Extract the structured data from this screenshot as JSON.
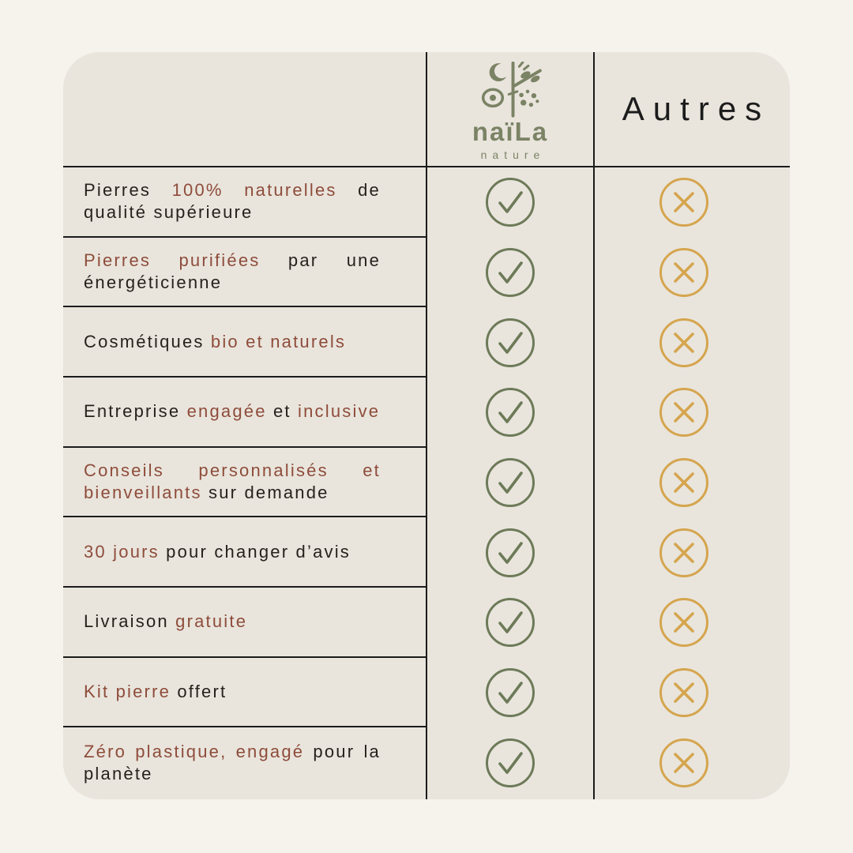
{
  "brand": {
    "name": "naïLa",
    "subtitle": "nature",
    "logo_icon": "moon-branch-eye-seeds-icon"
  },
  "header": {
    "competitor_label": "Autres"
  },
  "colors": {
    "page_bg": "#f6f2ec",
    "card_bg": "#e9e5dd",
    "line": "#1b1b1b",
    "text_dark": "#27211b",
    "text_accent": "#8e4c3a",
    "brand_green": "#7b8365",
    "check_green": "#6d7a58",
    "cross_gold": "#d5a54e"
  },
  "icons": {
    "check": "check-circle-icon",
    "cross": "x-circle-icon"
  },
  "table": {
    "rows": [
      {
        "segments": [
          {
            "text": "Pierres ",
            "accent": false
          },
          {
            "text": "100% naturelles",
            "accent": true
          },
          {
            "text": " de qualité supérieure",
            "accent": false
          }
        ],
        "naila": "check",
        "autres": "cross"
      },
      {
        "segments": [
          {
            "text": "Pierres purifiées",
            "accent": true
          },
          {
            "text": " par une énergéticienne",
            "accent": false
          }
        ],
        "naila": "check",
        "autres": "cross"
      },
      {
        "segments": [
          {
            "text": "Cosmétiques ",
            "accent": false
          },
          {
            "text": "bio et naturels",
            "accent": true
          }
        ],
        "naila": "check",
        "autres": "cross"
      },
      {
        "segments": [
          {
            "text": "Entreprise ",
            "accent": false
          },
          {
            "text": "engagée",
            "accent": true
          },
          {
            "text": " et ",
            "accent": false
          },
          {
            "text": "inclusive",
            "accent": true
          }
        ],
        "naila": "check",
        "autres": "cross"
      },
      {
        "segments": [
          {
            "text": "Conseils personnalisés et bienveillants",
            "accent": true
          },
          {
            "text": " sur demande",
            "accent": false
          }
        ],
        "naila": "check",
        "autres": "cross"
      },
      {
        "segments": [
          {
            "text": "30 jours",
            "accent": true
          },
          {
            "text": " pour changer d’avis",
            "accent": false
          }
        ],
        "naila": "check",
        "autres": "cross"
      },
      {
        "segments": [
          {
            "text": "Livraison ",
            "accent": false
          },
          {
            "text": "gratuite",
            "accent": true
          }
        ],
        "naila": "check",
        "autres": "cross"
      },
      {
        "segments": [
          {
            "text": "Kit pierre",
            "accent": true
          },
          {
            "text": " offert",
            "accent": false
          }
        ],
        "naila": "check",
        "autres": "cross"
      },
      {
        "segments": [
          {
            "text": "Zéro plastique, engagé",
            "accent": true
          },
          {
            "text": " pour la planète",
            "accent": false
          }
        ],
        "naila": "check",
        "autres": "cross"
      }
    ]
  }
}
